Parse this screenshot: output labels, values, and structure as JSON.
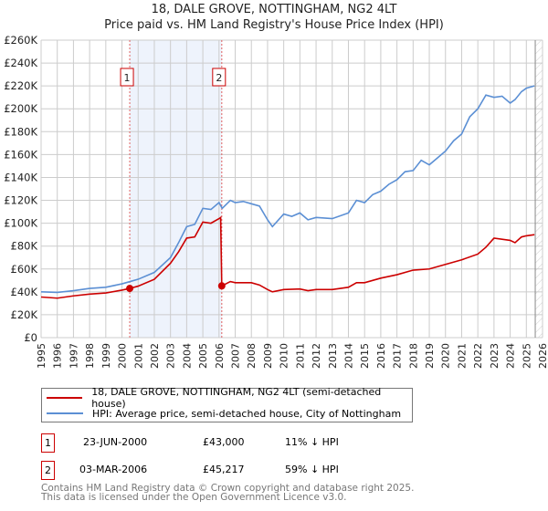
{
  "chart_data": {
    "type": "line",
    "title": "18, DALE GROVE, NOTTINGHAM, NG2 4LT",
    "subtitle": "Price paid vs. HM Land Registry's House Price Index (HPI)",
    "xlim": [
      1995,
      2026
    ],
    "ylim": [
      0,
      260000
    ],
    "x_ticks": [
      "1995",
      "1996",
      "1997",
      "1998",
      "1999",
      "2000",
      "2001",
      "2002",
      "2003",
      "2004",
      "2005",
      "2006",
      "2007",
      "2008",
      "2009",
      "2010",
      "2011",
      "2012",
      "2013",
      "2014",
      "2015",
      "2016",
      "2017",
      "2018",
      "2019",
      "2020",
      "2021",
      "2022",
      "2023",
      "2024",
      "2025",
      "2026"
    ],
    "y_ticks": [
      "£0",
      "£20K",
      "£40K",
      "£60K",
      "£80K",
      "£100K",
      "£120K",
      "£140K",
      "£160K",
      "£180K",
      "£200K",
      "£220K",
      "£240K",
      "£260K"
    ],
    "grid": true,
    "series": [
      {
        "name": "18, DALE GROVE, NOTTINGHAM, NG2 4LT (semi-detached house)",
        "color": "#cc0000",
        "x": [
          1995,
          1996,
          1997,
          1998,
          1999,
          2000,
          2000.48,
          2001,
          2002,
          2003,
          2003.5,
          2004,
          2004.5,
          2005,
          2005.5,
          2006,
          2006.1,
          2006.17,
          2006.7,
          2007,
          2008,
          2008.5,
          2009,
          2009.3,
          2010,
          2011,
          2011.5,
          2012,
          2013,
          2014,
          2014.5,
          2015,
          2016,
          2017,
          2018,
          2019,
          2020,
          2021,
          2022,
          2022.5,
          2023,
          2024,
          2024.3,
          2024.7,
          2025,
          2025.5
        ],
        "y": [
          35500,
          34500,
          36500,
          38000,
          39000,
          41500,
          43000,
          45000,
          51000,
          65000,
          75000,
          87000,
          88000,
          101000,
          100000,
          104000,
          105000,
          45217,
          49000,
          48000,
          48000,
          46000,
          42000,
          40000,
          42000,
          42500,
          41000,
          42000,
          42000,
          44000,
          48000,
          48000,
          52000,
          55000,
          59000,
          60000,
          64000,
          68000,
          73000,
          79000,
          87000,
          85000,
          83000,
          88000,
          89000,
          90000
        ]
      },
      {
        "name": "HPI: Average price, semi-detached house, City of Nottingham",
        "color": "#5b8fd4",
        "x": [
          1995,
          1996,
          1997,
          1998,
          1999,
          2000,
          2000.5,
          2001,
          2002,
          2003,
          2003.5,
          2004,
          2004.5,
          2005,
          2005.5,
          2006,
          2006.2,
          2006.7,
          2007,
          2007.5,
          2008,
          2008.5,
          2009,
          2009.3,
          2010,
          2010.5,
          2011,
          2011.5,
          2012,
          2013,
          2014,
          2014.5,
          2015,
          2015.5,
          2016,
          2016.5,
          2017,
          2017.5,
          2018,
          2018.5,
          2019,
          2019.5,
          2020,
          2020.5,
          2021,
          2021.5,
          2022,
          2022.5,
          2023,
          2023.5,
          2024,
          2024.3,
          2024.7,
          2025,
          2025.5
        ],
        "y": [
          40000,
          39500,
          41000,
          43000,
          44000,
          47000,
          49000,
          51000,
          57000,
          70000,
          83000,
          97000,
          99000,
          113000,
          112000,
          118000,
          113000,
          120000,
          118000,
          119000,
          117000,
          115000,
          103000,
          97000,
          108000,
          106000,
          109000,
          103000,
          105000,
          104000,
          109000,
          120000,
          118000,
          125000,
          128000,
          134000,
          138000,
          145000,
          146000,
          155000,
          151000,
          157000,
          163000,
          172000,
          178000,
          193000,
          200000,
          212000,
          210000,
          211000,
          205000,
          208000,
          215000,
          218000,
          220000
        ]
      }
    ],
    "annotations": [
      {
        "label": "1",
        "x": 2000.48,
        "y": 43000
      },
      {
        "label": "2",
        "x": 2006.17,
        "y": 45217
      }
    ],
    "shaded_range": [
      2000.48,
      2006.17
    ],
    "data_end": 2025.55
  },
  "legend": {
    "items": [
      "18, DALE GROVE, NOTTINGHAM, NG2 4LT (semi-detached house)",
      "HPI: Average price, semi-detached house, City of Nottingham"
    ]
  },
  "transactions": [
    {
      "num": "1",
      "date": "23-JUN-2000",
      "price": "£43,000",
      "hpi": "11% ↓ HPI"
    },
    {
      "num": "2",
      "date": "03-MAR-2006",
      "price": "£45,217",
      "hpi": "59% ↓ HPI"
    }
  ],
  "footer": {
    "line1": "Contains HM Land Registry data © Crown copyright and database right 2025.",
    "line2": "This data is licensed under the Open Government Licence v3.0."
  }
}
